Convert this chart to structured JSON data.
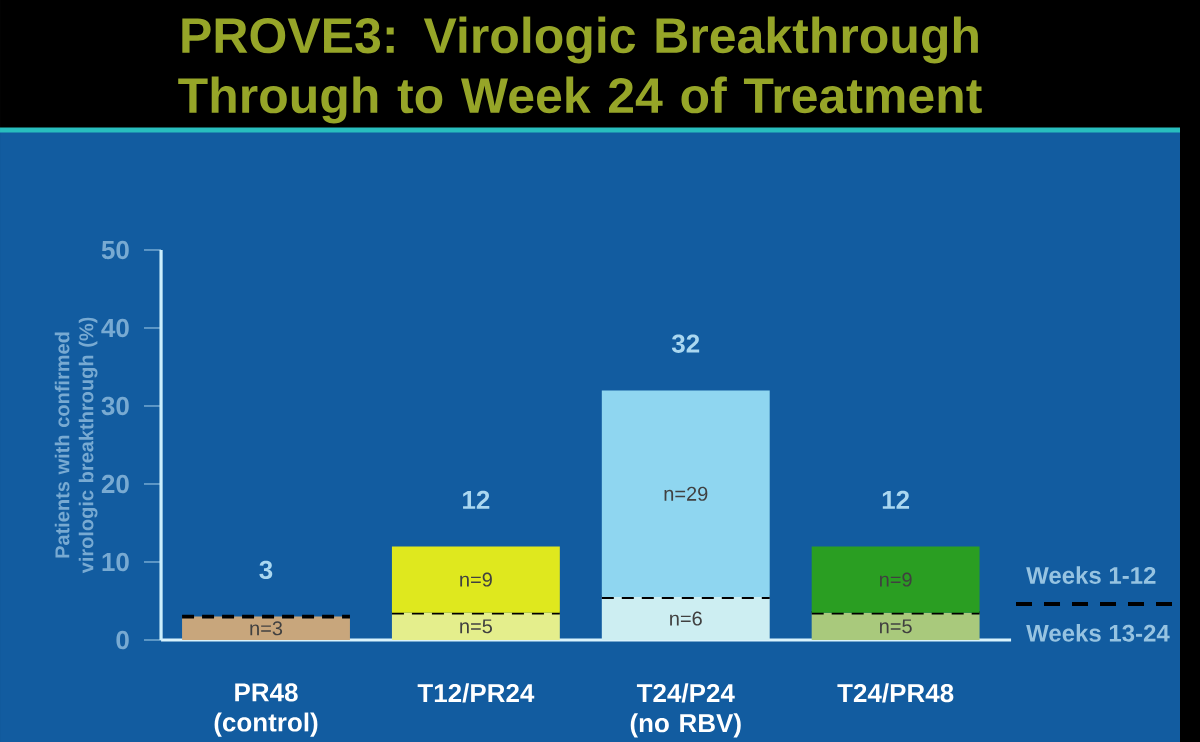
{
  "chart_data": {
    "type": "bar",
    "stacked": true,
    "title": "PROVE3: Virologic Breakthrough Through to Week 24 of Treatment",
    "ylabel": "Patients with confirmed virologic breakthrough (%)",
    "categories": [
      "PR48 (control)",
      "T12/PR24",
      "T24/P24 (no RBV)",
      "T24/PR48"
    ],
    "series": [
      {
        "name": "Weeks 13-24",
        "values": [
          3,
          3.5,
          5.5,
          3.5
        ],
        "colors": [
          "#c8a67c",
          "#e4ee8c",
          "#cdeef2",
          "#a9c97c"
        ]
      },
      {
        "name": "Weeks 1-12",
        "values": [
          0,
          8.5,
          26.5,
          8.5
        ],
        "colors": [
          "#c8a67c",
          "#dfe81e",
          "#8fd6f0",
          "#2a9e22"
        ]
      }
    ],
    "totals": [
      "3",
      "12",
      "32",
      "12"
    ],
    "annotations": [
      "n=3",
      "n=5",
      "n=9",
      "n=6",
      "n=29",
      "n=5",
      "n=9"
    ],
    "ylim": [
      0,
      50
    ],
    "yticks": [
      0,
      10,
      20,
      30,
      40,
      50
    ],
    "legend": "right"
  }
}
